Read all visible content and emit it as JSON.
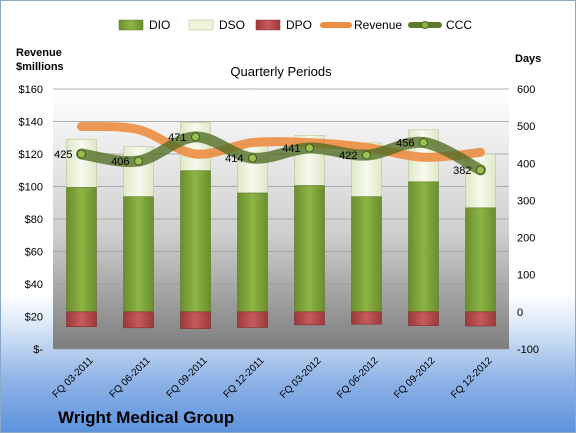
{
  "chart_data": {
    "type": "bar",
    "title": "Quarterly Periods",
    "company": "Wright Medical Group",
    "left_axis_label": [
      "Revenue",
      "$millions"
    ],
    "right_axis_label": "Days",
    "left_ticks": [
      "$-",
      "$20",
      "$40",
      "$60",
      "$80",
      "$100",
      "$120",
      "$140",
      "$160"
    ],
    "right_ticks": [
      "-100",
      "0",
      "100",
      "200",
      "300",
      "400",
      "500",
      "600"
    ],
    "left_ylim": [
      0,
      160
    ],
    "right_ylim": [
      -100,
      600
    ],
    "categories": [
      "FQ 03-2011",
      "FQ 06-2011",
      "FQ 09-2011",
      "FQ 12-2011",
      "FQ 03-2012",
      "FQ 06-2012",
      "FQ 09-2012",
      "FQ 12-2012"
    ],
    "legend_position": "top",
    "legend": [
      "DIO",
      "DSO",
      "DPO",
      "Revenue",
      "CCC"
    ],
    "series": [
      {
        "name": "DIO",
        "axis": "right",
        "kind": "stacked-bar",
        "color": "#7fa33a",
        "values": [
          335,
          310,
          380,
          320,
          340,
          310,
          350,
          280
        ]
      },
      {
        "name": "DSO",
        "axis": "right",
        "kind": "stacked-bar",
        "color": "#eef3dc",
        "values": [
          130,
          135,
          130,
          130,
          135,
          145,
          140,
          145
        ]
      },
      {
        "name": "DPO",
        "axis": "right",
        "kind": "negative-bar",
        "color": "#b24a4c",
        "values": [
          -40,
          -43,
          -45,
          -42,
          -35,
          -33,
          -37,
          -38
        ]
      },
      {
        "name": "Revenue",
        "axis": "left",
        "kind": "line",
        "color": "#ec8d42",
        "values": [
          137,
          135,
          120,
          127,
          127,
          124,
          118,
          121
        ]
      },
      {
        "name": "CCC",
        "axis": "right",
        "kind": "line",
        "color": "#5d7a2a",
        "values": [
          425,
          406,
          471,
          414,
          441,
          422,
          456,
          382
        ]
      }
    ],
    "ccc_labels": [
      "425",
      "406",
      "471",
      "414",
      "441",
      "422",
      "456",
      "382"
    ],
    "grid": true
  }
}
